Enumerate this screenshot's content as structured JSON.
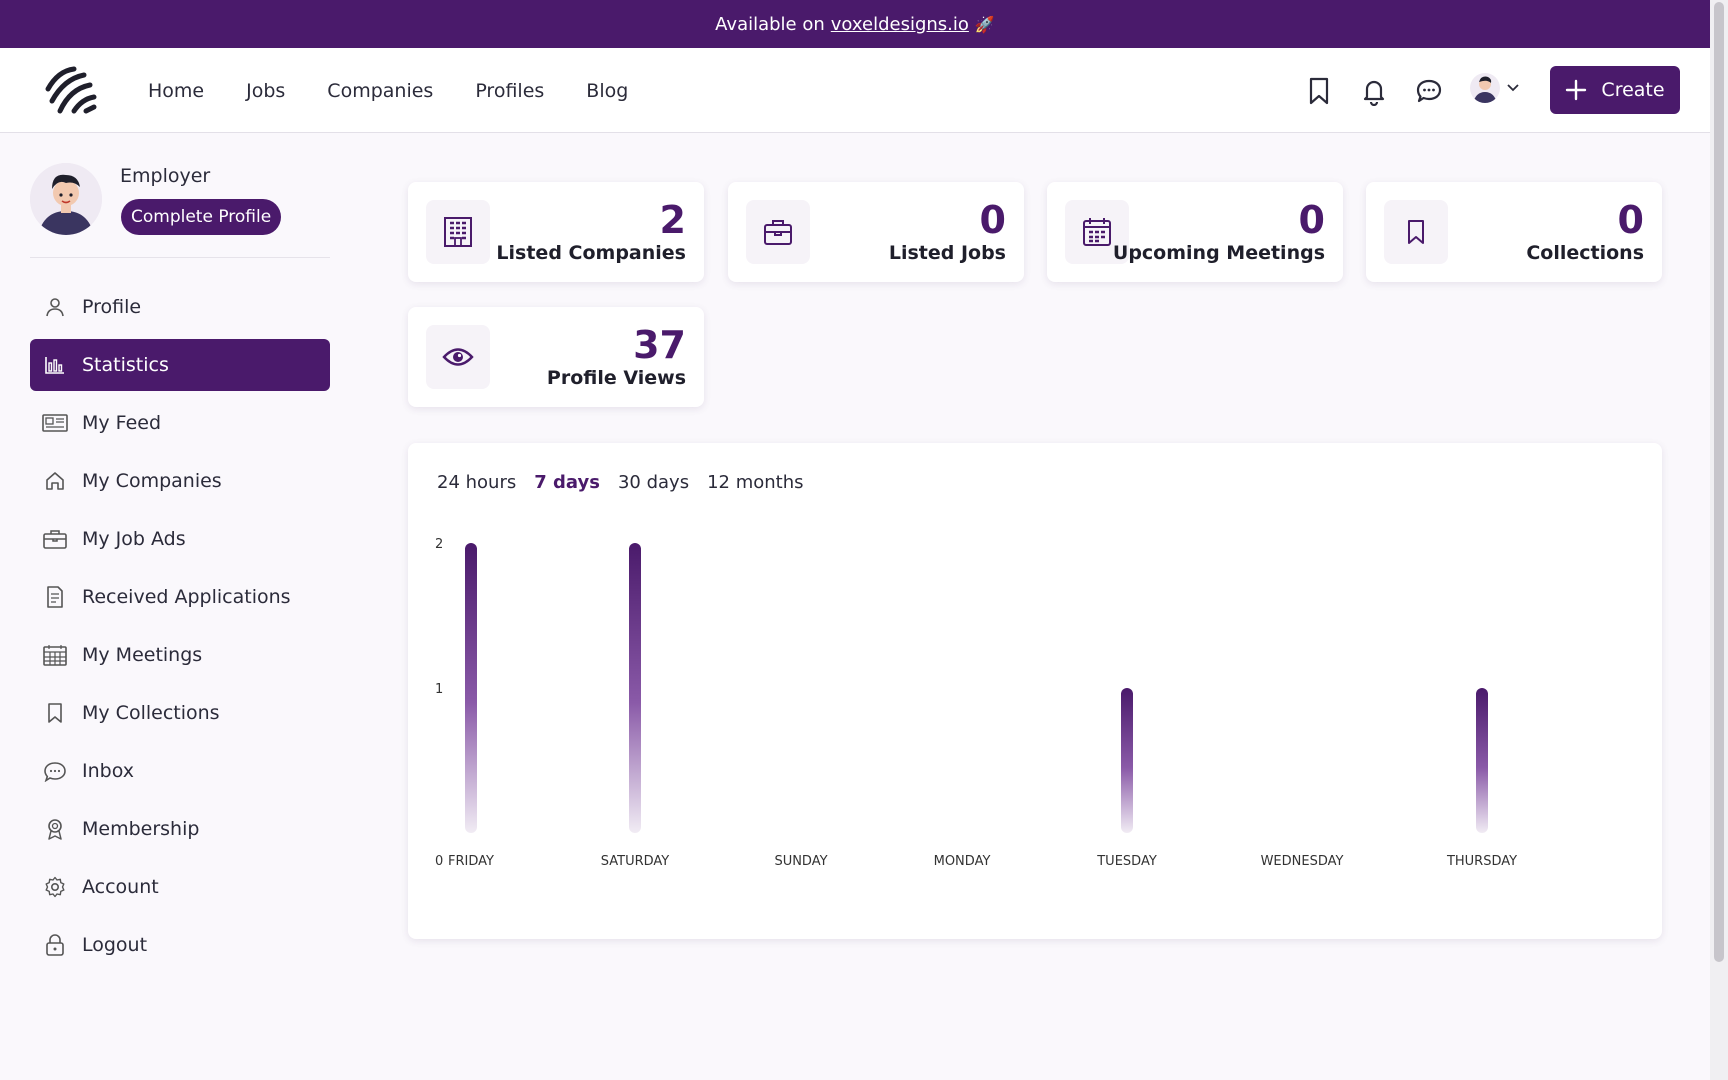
{
  "banner": {
    "prefix": "Available on",
    "link": "voxeldesigns.io",
    "emoji": "🚀"
  },
  "nav": {
    "items": [
      "Home",
      "Jobs",
      "Companies",
      "Profiles",
      "Blog"
    ]
  },
  "header": {
    "create_label": "Create"
  },
  "user": {
    "role": "Employer",
    "complete_label": "Complete Profile"
  },
  "sidebar": {
    "items": [
      {
        "label": "Profile",
        "icon": "user-icon"
      },
      {
        "label": "Statistics",
        "icon": "bar-chart-icon",
        "active": true
      },
      {
        "label": "My Feed",
        "icon": "newspaper-icon"
      },
      {
        "label": "My Companies",
        "icon": "home-icon"
      },
      {
        "label": "My Job Ads",
        "icon": "briefcase-icon"
      },
      {
        "label": "Received Applications",
        "icon": "document-icon"
      },
      {
        "label": "My Meetings",
        "icon": "calendar-icon"
      },
      {
        "label": "My Collections",
        "icon": "bookmark-icon"
      },
      {
        "label": "Inbox",
        "icon": "chat-icon"
      },
      {
        "label": "Membership",
        "icon": "award-icon"
      },
      {
        "label": "Account",
        "icon": "gear-icon"
      },
      {
        "label": "Logout",
        "icon": "lock-icon"
      }
    ]
  },
  "stats": [
    {
      "value": "2",
      "label": "Listed Companies",
      "icon": "building-icon"
    },
    {
      "value": "0",
      "label": "Listed Jobs",
      "icon": "briefcase-icon"
    },
    {
      "value": "0",
      "label": "Upcoming Meetings",
      "icon": "calendar-icon"
    },
    {
      "value": "0",
      "label": "Collections",
      "icon": "bookmark-icon"
    },
    {
      "value": "37",
      "label": "Profile Views",
      "icon": "eye-icon"
    }
  ],
  "ranges": {
    "items": [
      "24 hours",
      "7 days",
      "30 days",
      "12 months"
    ],
    "selected": "7 days"
  },
  "colors": {
    "brand": "#4a1a6b",
    "background": "#faf8fc"
  },
  "chart_data": {
    "type": "bar",
    "categories": [
      "FRIDAY",
      "SATURDAY",
      "SUNDAY",
      "MONDAY",
      "TUESDAY",
      "WEDNESDAY",
      "THURSDAY"
    ],
    "values": [
      2,
      2,
      0,
      0,
      1,
      0,
      1
    ],
    "yticks": [
      "0",
      "1",
      "2"
    ],
    "ylim": [
      0,
      2
    ],
    "grid": false
  }
}
